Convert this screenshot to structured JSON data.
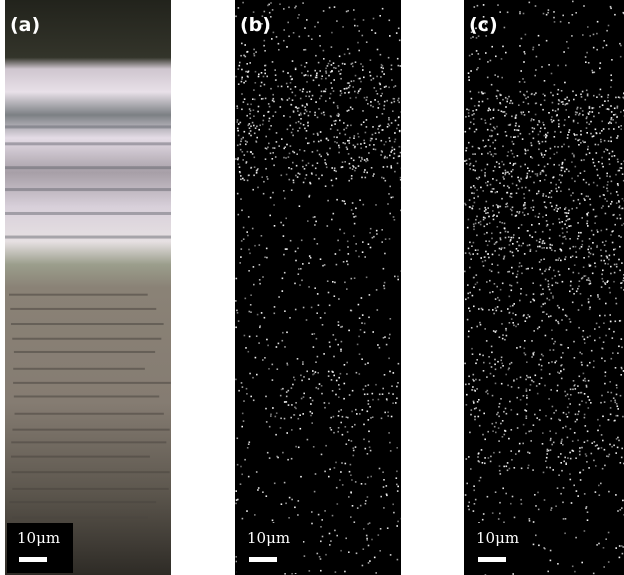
{
  "panels": [
    {
      "id": "a",
      "label": "(a)",
      "kind": "optical micrograph",
      "scale_text": "10μm"
    },
    {
      "id": "b",
      "label": "(b)",
      "kind": "elemental map",
      "scale_text": "10μm"
    },
    {
      "id": "c",
      "label": "(c)",
      "kind": "elemental map",
      "scale_text": "10μm"
    }
  ],
  "colors": {
    "background": "#ffffff",
    "label": "#ffffff",
    "scalebar_bg": "#000000",
    "optical_top": "#2b2c22",
    "optical_bright": "#e6dde3",
    "optical_lower": "#8a8276",
    "map_bg": "#000000",
    "map_signal": "#ffffff"
  }
}
